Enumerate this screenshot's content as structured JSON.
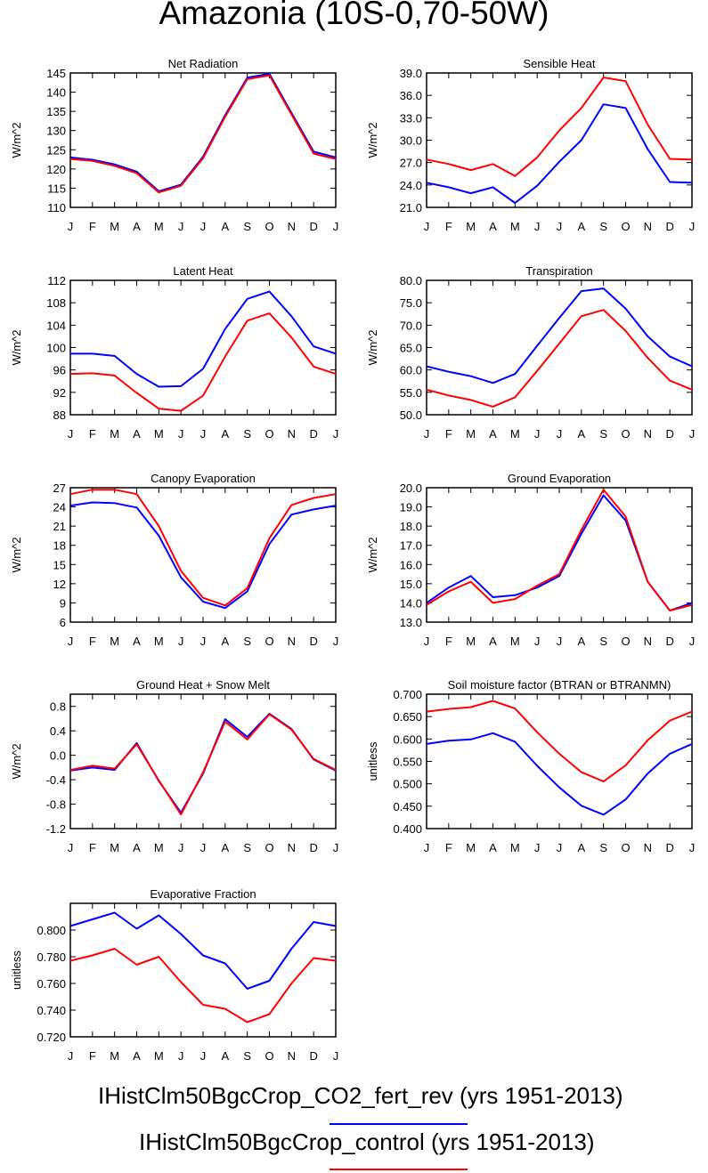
{
  "page": {
    "title": "Amazonia (10S-0,70-50W)"
  },
  "legend": [
    {
      "label": "IHistClm50BgcCrop_CO2_fert_rev (yrs 1951-2013)",
      "color": "#0000ff"
    },
    {
      "label": "IHistClm50BgcCrop_control (yrs 1951-2013)",
      "color": "#ff0000"
    }
  ],
  "months": [
    "J",
    "F",
    "M",
    "A",
    "M",
    "J",
    "J",
    "A",
    "S",
    "O",
    "N",
    "D",
    "J"
  ],
  "chart_data": [
    {
      "type": "line",
      "title": "Net Radiation",
      "ylabel": "W/m^2",
      "ylim": [
        110,
        145
      ],
      "yticks": [
        "110",
        "115",
        "120",
        "125",
        "130",
        "135",
        "140",
        "145"
      ],
      "x": [
        "J",
        "F",
        "M",
        "A",
        "M",
        "J",
        "J",
        "A",
        "S",
        "O",
        "N",
        "D",
        "J"
      ],
      "series": [
        {
          "name": "IHistClm50BgcCrop_CO2_fert_rev",
          "color": "#0000ff",
          "values": [
            123.0,
            122.4,
            121.2,
            119.3,
            114.2,
            115.9,
            123.2,
            134.0,
            143.8,
            144.8,
            134.6,
            124.5,
            123.0
          ]
        },
        {
          "name": "IHistClm50BgcCrop_control",
          "color": "#ff0000",
          "values": [
            122.6,
            122.1,
            120.8,
            118.9,
            113.9,
            115.6,
            122.8,
            133.6,
            143.4,
            144.4,
            134.2,
            124.0,
            122.6
          ]
        }
      ]
    },
    {
      "type": "line",
      "title": "Sensible Heat",
      "ylabel": "W/m^2",
      "ylim": [
        21.0,
        39.0
      ],
      "yticks": [
        "21.0",
        "24.0",
        "27.0",
        "30.0",
        "33.0",
        "36.0",
        "39.0"
      ],
      "x": [
        "J",
        "F",
        "M",
        "A",
        "M",
        "J",
        "J",
        "A",
        "S",
        "O",
        "N",
        "D",
        "J"
      ],
      "series": [
        {
          "name": "IHistClm50BgcCrop_CO2_fert_rev",
          "color": "#0000ff",
          "values": [
            24.3,
            23.7,
            22.9,
            23.7,
            21.6,
            23.9,
            27.1,
            30.0,
            34.8,
            34.3,
            28.8,
            24.4,
            24.3
          ]
        },
        {
          "name": "IHistClm50BgcCrop_control",
          "color": "#ff0000",
          "values": [
            27.4,
            26.8,
            26.0,
            26.8,
            25.2,
            27.7,
            31.3,
            34.3,
            38.4,
            37.9,
            32.1,
            27.5,
            27.4
          ]
        }
      ]
    },
    {
      "type": "line",
      "title": "Latent Heat",
      "ylabel": "W/m^2",
      "ylim": [
        88,
        112
      ],
      "yticks": [
        "88",
        "92",
        "96",
        "100",
        "104",
        "108",
        "112"
      ],
      "x": [
        "J",
        "F",
        "M",
        "A",
        "M",
        "J",
        "J",
        "A",
        "S",
        "O",
        "N",
        "D",
        "J"
      ],
      "series": [
        {
          "name": "IHistClm50BgcCrop_CO2_fert_rev",
          "color": "#0000ff",
          "values": [
            98.9,
            98.9,
            98.5,
            95.3,
            93.0,
            93.1,
            96.2,
            103.3,
            108.7,
            110.0,
            105.6,
            100.2,
            98.9
          ]
        },
        {
          "name": "IHistClm50BgcCrop_control",
          "color": "#ff0000",
          "values": [
            95.3,
            95.4,
            95.0,
            91.9,
            89.1,
            88.7,
            91.4,
            98.4,
            104.8,
            106.1,
            101.8,
            96.6,
            95.3
          ]
        }
      ]
    },
    {
      "type": "line",
      "title": "Transpiration",
      "ylabel": "W/m^2",
      "ylim": [
        50.0,
        80.0
      ],
      "yticks": [
        "50.0",
        "55.0",
        "60.0",
        "65.0",
        "70.0",
        "75.0",
        "80.0"
      ],
      "x": [
        "J",
        "F",
        "M",
        "A",
        "M",
        "J",
        "J",
        "A",
        "S",
        "O",
        "N",
        "D",
        "J"
      ],
      "series": [
        {
          "name": "IHistClm50BgcCrop_CO2_fert_rev",
          "color": "#0000ff",
          "values": [
            60.8,
            59.6,
            58.6,
            57.1,
            59.1,
            65.4,
            71.6,
            77.6,
            78.2,
            73.7,
            67.5,
            63.0,
            60.8
          ]
        },
        {
          "name": "IHistClm50BgcCrop_control",
          "color": "#ff0000",
          "values": [
            55.6,
            54.3,
            53.3,
            51.8,
            53.9,
            59.8,
            65.9,
            72.0,
            73.4,
            68.7,
            62.7,
            57.6,
            55.6
          ]
        }
      ]
    },
    {
      "type": "line",
      "title": "Canopy Evaporation",
      "ylabel": "W/m^2",
      "ylim": [
        6,
        27
      ],
      "yticks": [
        "6",
        "9",
        "12",
        "15",
        "18",
        "21",
        "24",
        "27"
      ],
      "x": [
        "J",
        "F",
        "M",
        "A",
        "M",
        "J",
        "J",
        "A",
        "S",
        "O",
        "N",
        "D",
        "J"
      ],
      "series": [
        {
          "name": "IHistClm50BgcCrop_CO2_fert_rev",
          "color": "#0000ff",
          "values": [
            24.2,
            24.7,
            24.6,
            23.9,
            19.5,
            13.0,
            9.2,
            8.2,
            10.8,
            18.2,
            22.8,
            23.6,
            24.2
          ]
        },
        {
          "name": "IHistClm50BgcCrop_control",
          "color": "#ff0000",
          "values": [
            26.0,
            26.7,
            26.7,
            26.0,
            21.0,
            14.0,
            9.8,
            8.6,
            11.3,
            19.1,
            24.3,
            25.4,
            26.0
          ]
        }
      ]
    },
    {
      "type": "line",
      "title": "Ground Evaporation",
      "ylabel": "W/m^2",
      "ylim": [
        13.0,
        20.0
      ],
      "yticks": [
        "13.0",
        "14.0",
        "15.0",
        "16.0",
        "17.0",
        "18.0",
        "19.0",
        "20.0"
      ],
      "x": [
        "J",
        "F",
        "M",
        "A",
        "M",
        "J",
        "J",
        "A",
        "S",
        "O",
        "N",
        "D",
        "J"
      ],
      "series": [
        {
          "name": "IHistClm50BgcCrop_CO2_fert_rev",
          "color": "#0000ff",
          "values": [
            14.0,
            14.8,
            15.4,
            14.3,
            14.4,
            14.8,
            15.4,
            17.6,
            19.6,
            18.3,
            15.1,
            13.6,
            14.0
          ]
        },
        {
          "name": "IHistClm50BgcCrop_control",
          "color": "#ff0000",
          "values": [
            13.9,
            14.6,
            15.1,
            14.0,
            14.2,
            14.9,
            15.5,
            17.8,
            19.9,
            18.5,
            15.1,
            13.6,
            13.9
          ]
        }
      ]
    },
    {
      "type": "line",
      "title": "Ground Heat + Snow Melt",
      "ylabel": "W/m^2",
      "ylim": [
        -1.2,
        1.0
      ],
      "yticks": [
        "-1.2",
        "-0.8",
        "-0.4",
        "0.0",
        "0.4",
        "0.8"
      ],
      "x": [
        "J",
        "F",
        "M",
        "A",
        "M",
        "J",
        "J",
        "A",
        "S",
        "O",
        "N",
        "D",
        "J"
      ],
      "series": [
        {
          "name": "IHistClm50BgcCrop_CO2_fert_rev",
          "color": "#0000ff",
          "values": [
            -0.25,
            -0.2,
            -0.24,
            0.2,
            -0.42,
            -0.94,
            -0.3,
            0.59,
            0.3,
            0.68,
            0.43,
            -0.07,
            -0.25
          ]
        },
        {
          "name": "IHistClm50BgcCrop_control",
          "color": "#ff0000",
          "values": [
            -0.24,
            -0.17,
            -0.22,
            0.18,
            -0.41,
            -0.97,
            -0.28,
            0.55,
            0.26,
            0.67,
            0.42,
            -0.06,
            -0.24
          ]
        }
      ]
    },
    {
      "type": "line",
      "title": "Soil moisture factor (BTRAN or BTRANMN)",
      "ylabel": "unitless",
      "ylim": [
        0.4,
        0.7
      ],
      "yticks": [
        "0.400",
        "0.450",
        "0.500",
        "0.550",
        "0.600",
        "0.650",
        "0.700"
      ],
      "x": [
        "J",
        "F",
        "M",
        "A",
        "M",
        "J",
        "J",
        "A",
        "S",
        "O",
        "N",
        "D",
        "J"
      ],
      "series": [
        {
          "name": "IHistClm50BgcCrop_CO2_fert_rev",
          "color": "#0000ff",
          "values": [
            0.589,
            0.596,
            0.599,
            0.613,
            0.594,
            0.54,
            0.492,
            0.451,
            0.431,
            0.465,
            0.523,
            0.567,
            0.589
          ]
        },
        {
          "name": "IHistClm50BgcCrop_control",
          "color": "#ff0000",
          "values": [
            0.661,
            0.667,
            0.671,
            0.685,
            0.668,
            0.615,
            0.567,
            0.526,
            0.505,
            0.541,
            0.597,
            0.641,
            0.661
          ]
        }
      ]
    },
    {
      "type": "line",
      "title": "Evaporative Fraction",
      "ylabel": "unitless",
      "ylim": [
        0.72,
        0.82
      ],
      "yticks": [
        "0.720",
        "0.740",
        "0.760",
        "0.780",
        "0.800"
      ],
      "x": [
        "J",
        "F",
        "M",
        "A",
        "M",
        "J",
        "J",
        "A",
        "S",
        "O",
        "N",
        "D",
        "J"
      ],
      "series": [
        {
          "name": "IHistClm50BgcCrop_CO2_fert_rev",
          "color": "#0000ff",
          "values": [
            0.803,
            0.808,
            0.813,
            0.801,
            0.811,
            0.797,
            0.781,
            0.775,
            0.756,
            0.762,
            0.786,
            0.806,
            0.803
          ]
        },
        {
          "name": "IHistClm50BgcCrop_control",
          "color": "#ff0000",
          "values": [
            0.777,
            0.781,
            0.786,
            0.774,
            0.78,
            0.761,
            0.744,
            0.741,
            0.731,
            0.737,
            0.76,
            0.779,
            0.777
          ]
        }
      ]
    }
  ]
}
